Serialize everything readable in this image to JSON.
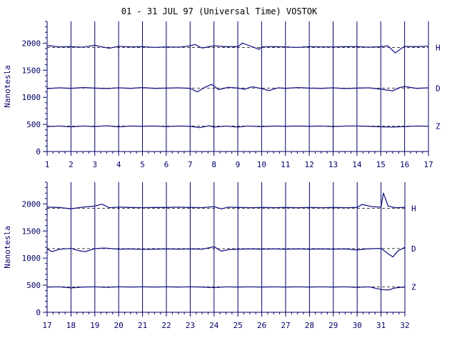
{
  "title": "01 - 31 JUL 97 (Universal Time) VOSTOK",
  "colors": {
    "trace": "#1a1a88",
    "axis": "#000066",
    "baseline": "#000000",
    "title": "#000000"
  },
  "chart_data": [
    {
      "type": "line",
      "ylabel": "Nanotesla",
      "xlabel": "",
      "x_ticks": [
        "1",
        "2",
        "3",
        "4",
        "5",
        "6",
        "7",
        "8",
        "9",
        "10",
        "11",
        "12",
        "13",
        "14",
        "15",
        "16",
        "17"
      ],
      "xlim": [
        1,
        17
      ],
      "ylim": [
        0,
        2400
      ],
      "y_ticks": [
        0,
        500,
        1000,
        1500,
        2000
      ],
      "grid": "vertical day lines",
      "series": [
        {
          "name": "H",
          "baseline": 1920,
          "points": [
            [
              1,
              1955
            ],
            [
              1.5,
              1930
            ],
            [
              2,
              1935
            ],
            [
              2.5,
              1925
            ],
            [
              3,
              1960
            ],
            [
              3.2,
              1940
            ],
            [
              3.6,
              1905
            ],
            [
              4,
              1940
            ],
            [
              4.5,
              1930
            ],
            [
              5,
              1935
            ],
            [
              5.5,
              1920
            ],
            [
              6,
              1930
            ],
            [
              6.5,
              1925
            ],
            [
              7,
              1950
            ],
            [
              7.2,
              1975
            ],
            [
              7.5,
              1910
            ],
            [
              8,
              1950
            ],
            [
              8.5,
              1935
            ],
            [
              9,
              1935
            ],
            [
              9.2,
              2000
            ],
            [
              9.6,
              1935
            ],
            [
              9.9,
              1885
            ],
            [
              10,
              1930
            ],
            [
              10.5,
              1935
            ],
            [
              11,
              1930
            ],
            [
              11.5,
              1920
            ],
            [
              12,
              1935
            ],
            [
              12.5,
              1930
            ],
            [
              13,
              1930
            ],
            [
              13.5,
              1935
            ],
            [
              14,
              1935
            ],
            [
              14.5,
              1925
            ],
            [
              15,
              1935
            ],
            [
              15.3,
              1950
            ],
            [
              15.6,
              1820
            ],
            [
              15.8,
              1880
            ],
            [
              16,
              1940
            ],
            [
              16.5,
              1935
            ],
            [
              17,
              1945
            ]
          ]
        },
        {
          "name": "D",
          "baseline": 1170,
          "points": [
            [
              1,
              1160
            ],
            [
              1.5,
              1175
            ],
            [
              2,
              1165
            ],
            [
              2.5,
              1180
            ],
            [
              3,
              1170
            ],
            [
              3.5,
              1160
            ],
            [
              4,
              1175
            ],
            [
              4.5,
              1165
            ],
            [
              5,
              1180
            ],
            [
              5.5,
              1165
            ],
            [
              6,
              1170
            ],
            [
              6.5,
              1175
            ],
            [
              7,
              1165
            ],
            [
              7.3,
              1100
            ],
            [
              7.6,
              1180
            ],
            [
              7.9,
              1240
            ],
            [
              8.2,
              1140
            ],
            [
              8.6,
              1185
            ],
            [
              9,
              1170
            ],
            [
              9.3,
              1150
            ],
            [
              9.6,
              1195
            ],
            [
              10,
              1160
            ],
            [
              10.3,
              1125
            ],
            [
              10.7,
              1175
            ],
            [
              11,
              1165
            ],
            [
              11.5,
              1180
            ],
            [
              12,
              1170
            ],
            [
              12.5,
              1165
            ],
            [
              13,
              1175
            ],
            [
              13.5,
              1160
            ],
            [
              14,
              1170
            ],
            [
              14.5,
              1175
            ],
            [
              15,
              1150
            ],
            [
              15.5,
              1120
            ],
            [
              15.8,
              1180
            ],
            [
              16,
              1200
            ],
            [
              16.5,
              1165
            ],
            [
              17,
              1175
            ]
          ]
        },
        {
          "name": "Z",
          "baseline": 470,
          "points": [
            [
              1,
              460
            ],
            [
              1.5,
              470
            ],
            [
              2,
              455
            ],
            [
              2.5,
              470
            ],
            [
              3,
              460
            ],
            [
              3.5,
              475
            ],
            [
              4,
              455
            ],
            [
              4.5,
              470
            ],
            [
              5,
              465
            ],
            [
              5.5,
              470
            ],
            [
              6,
              460
            ],
            [
              6.5,
              470
            ],
            [
              7,
              465
            ],
            [
              7.4,
              440
            ],
            [
              7.8,
              475
            ],
            [
              8,
              450
            ],
            [
              8.5,
              470
            ],
            [
              9,
              450
            ],
            [
              9.4,
              470
            ],
            [
              10,
              460
            ],
            [
              10.5,
              470
            ],
            [
              11,
              465
            ],
            [
              11.5,
              470
            ],
            [
              12,
              465
            ],
            [
              12.5,
              470
            ],
            [
              13,
              460
            ],
            [
              13.5,
              470
            ],
            [
              14,
              470
            ],
            [
              14.5,
              465
            ],
            [
              15,
              455
            ],
            [
              15.5,
              450
            ],
            [
              16,
              460
            ],
            [
              16.5,
              470
            ],
            [
              17,
              465
            ]
          ]
        }
      ]
    },
    {
      "type": "line",
      "ylabel": "Nanotesla",
      "xlabel": "",
      "x_ticks": [
        "17",
        "18",
        "19",
        "20",
        "21",
        "22",
        "23",
        "24",
        "25",
        "26",
        "27",
        "28",
        "29",
        "30",
        "31",
        "32"
      ],
      "xlim": [
        17,
        32
      ],
      "ylim": [
        0,
        2400
      ],
      "y_ticks": [
        0,
        500,
        1000,
        1500,
        2000
      ],
      "grid": "vertical day lines",
      "series": [
        {
          "name": "H",
          "baseline": 1920,
          "points": [
            [
              17,
              1940
            ],
            [
              17.5,
              1935
            ],
            [
              18,
              1910
            ],
            [
              18.5,
              1940
            ],
            [
              19,
              1960
            ],
            [
              19.3,
              1995
            ],
            [
              19.6,
              1930
            ],
            [
              20,
              1940
            ],
            [
              20.5,
              1935
            ],
            [
              21,
              1930
            ],
            [
              21.5,
              1935
            ],
            [
              22,
              1935
            ],
            [
              22.5,
              1940
            ],
            [
              23,
              1935
            ],
            [
              23.5,
              1930
            ],
            [
              24,
              1950
            ],
            [
              24.3,
              1910
            ],
            [
              24.6,
              1940
            ],
            [
              25,
              1935
            ],
            [
              25.5,
              1930
            ],
            [
              26,
              1935
            ],
            [
              26.5,
              1930
            ],
            [
              27,
              1935
            ],
            [
              27.5,
              1930
            ],
            [
              28,
              1935
            ],
            [
              28.5,
              1930
            ],
            [
              29,
              1935
            ],
            [
              29.5,
              1930
            ],
            [
              30,
              1935
            ],
            [
              30.2,
              1990
            ],
            [
              30.6,
              1950
            ],
            [
              31,
              1940
            ],
            [
              31.1,
              2200
            ],
            [
              31.3,
              1960
            ],
            [
              31.6,
              1930
            ],
            [
              32,
              1935
            ]
          ]
        },
        {
          "name": "D",
          "baseline": 1175,
          "points": [
            [
              17,
              1170
            ],
            [
              17.2,
              1120
            ],
            [
              17.5,
              1160
            ],
            [
              18,
              1180
            ],
            [
              18.3,
              1140
            ],
            [
              18.6,
              1120
            ],
            [
              19,
              1175
            ],
            [
              19.4,
              1185
            ],
            [
              20,
              1165
            ],
            [
              20.5,
              1170
            ],
            [
              21,
              1160
            ],
            [
              21.5,
              1165
            ],
            [
              22,
              1170
            ],
            [
              22.5,
              1165
            ],
            [
              23,
              1170
            ],
            [
              23.5,
              1165
            ],
            [
              24,
              1210
            ],
            [
              24.3,
              1130
            ],
            [
              24.6,
              1155
            ],
            [
              25,
              1165
            ],
            [
              25.5,
              1170
            ],
            [
              26,
              1165
            ],
            [
              26.5,
              1170
            ],
            [
              27,
              1165
            ],
            [
              27.5,
              1170
            ],
            [
              28,
              1165
            ],
            [
              28.5,
              1170
            ],
            [
              29,
              1165
            ],
            [
              29.5,
              1170
            ],
            [
              30,
              1150
            ],
            [
              30.4,
              1170
            ],
            [
              31,
              1180
            ],
            [
              31.3,
              1080
            ],
            [
              31.5,
              1020
            ],
            [
              31.7,
              1130
            ],
            [
              32,
              1200
            ]
          ]
        },
        {
          "name": "Z",
          "baseline": 470,
          "points": [
            [
              17,
              465
            ],
            [
              17.5,
              470
            ],
            [
              18,
              450
            ],
            [
              18.5,
              465
            ],
            [
              19,
              470
            ],
            [
              19.5,
              460
            ],
            [
              20,
              470
            ],
            [
              20.5,
              465
            ],
            [
              21,
              470
            ],
            [
              21.5,
              465
            ],
            [
              22,
              470
            ],
            [
              22.5,
              465
            ],
            [
              23,
              470
            ],
            [
              23.5,
              465
            ],
            [
              24,
              455
            ],
            [
              24.5,
              470
            ],
            [
              25,
              465
            ],
            [
              25.5,
              470
            ],
            [
              26,
              465
            ],
            [
              26.5,
              470
            ],
            [
              27,
              465
            ],
            [
              27.5,
              470
            ],
            [
              28,
              465
            ],
            [
              28.5,
              470
            ],
            [
              29,
              465
            ],
            [
              29.5,
              470
            ],
            [
              30,
              460
            ],
            [
              30.5,
              470
            ],
            [
              31,
              420
            ],
            [
              31.3,
              410
            ],
            [
              31.6,
              450
            ],
            [
              32,
              465
            ]
          ]
        }
      ]
    }
  ]
}
